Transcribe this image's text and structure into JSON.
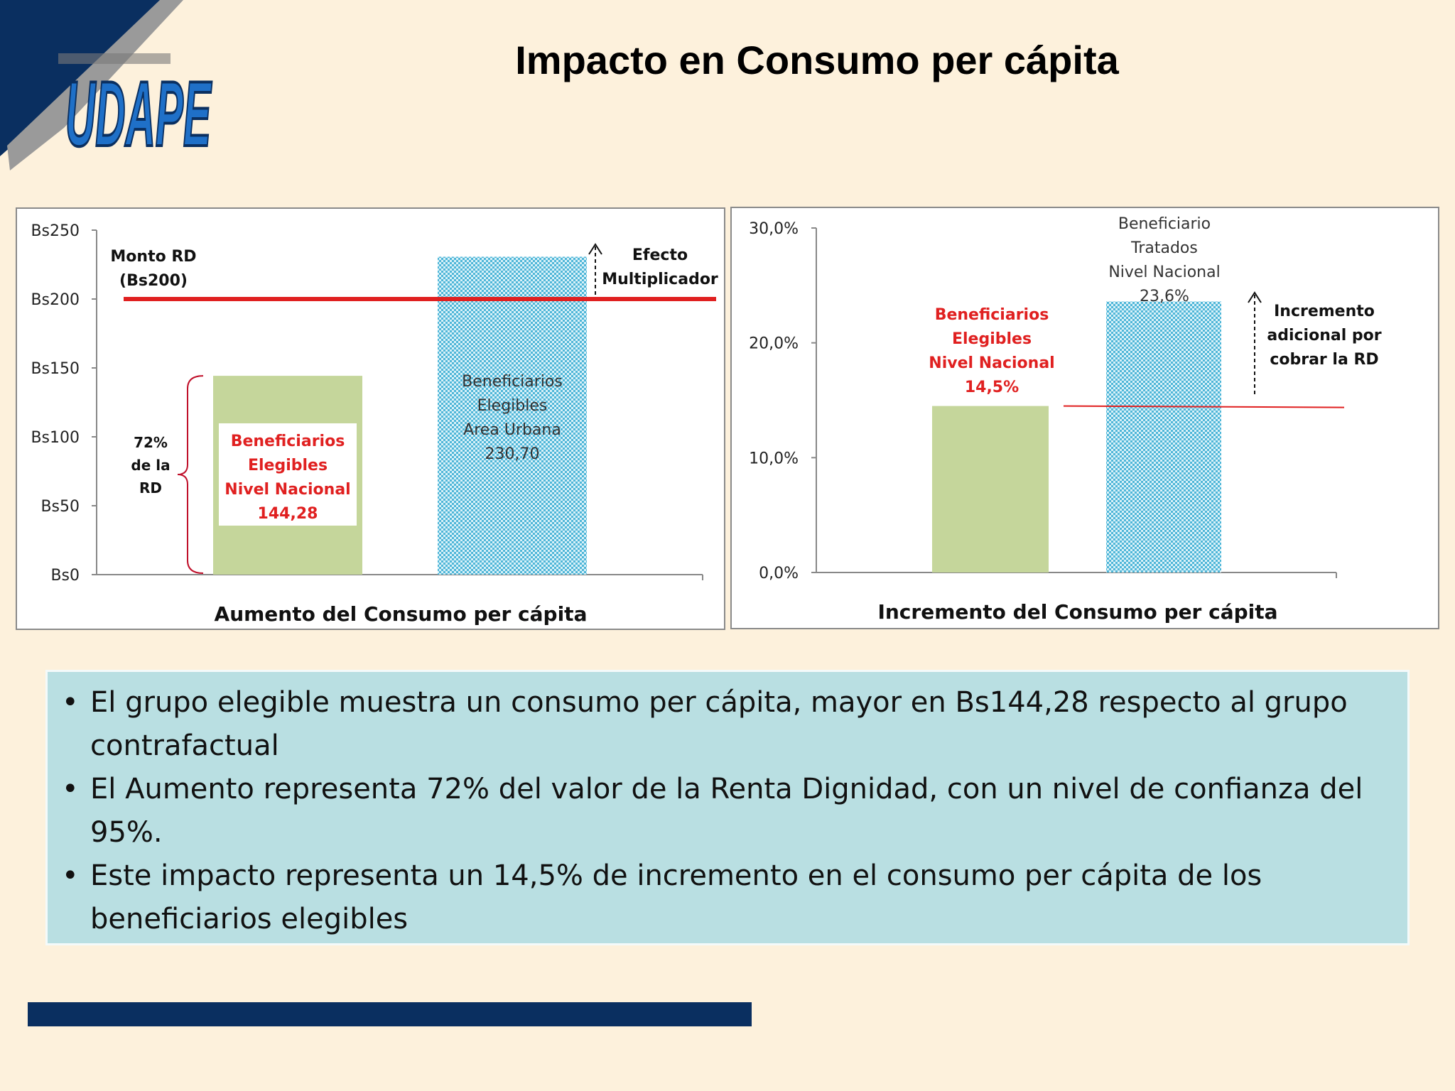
{
  "slide": {
    "title": "Impacto en Consumo per cápita",
    "logo_text": "UDAPE"
  },
  "colors": {
    "background": "#fdf1dc",
    "navy": "#0a2f60",
    "green_bar": "#c5d69b",
    "blue_hatch": "#4fb6d8",
    "red": "#e02020",
    "bullet_box": "#b9dfe2"
  },
  "chart_data": [
    {
      "type": "bar",
      "title": "Aumento del Consumo per cápita",
      "ylim": [
        0,
        250
      ],
      "yticks": [
        "Bs0",
        "Bs50",
        "Bs100",
        "Bs150",
        "Bs200",
        "Bs250"
      ],
      "yvalues": [
        0,
        50,
        100,
        150,
        200,
        250
      ],
      "bars": [
        {
          "value": 144.28,
          "label_lines": [
            "Beneficiarios",
            "Elegibles",
            "Nivel Nacional",
            "144,28"
          ],
          "style": "green"
        },
        {
          "value": 230.7,
          "label_lines": [
            "Beneficiarios",
            "Elegibles",
            "Area Urbana",
            "230,70"
          ],
          "style": "blue-hatch"
        }
      ],
      "reference_line": {
        "value": 200,
        "label_lines": [
          "Monto RD",
          "(Bs200)"
        ]
      },
      "annotations": {
        "multiplier_lines": [
          "Efecto",
          "Multiplicador"
        ],
        "share_lines": [
          "72%",
          "de la",
          "RD"
        ]
      }
    },
    {
      "type": "bar",
      "title": "Incremento del Consumo per cápita",
      "ylim": [
        0,
        30
      ],
      "yticks": [
        "0,0%",
        "10,0%",
        "20,0%",
        "30,0%"
      ],
      "yvalues": [
        0,
        10,
        20,
        30
      ],
      "bars": [
        {
          "value": 14.5,
          "label_lines": [
            "Beneficiarios",
            "Elegibles",
            "Nivel Nacional",
            "14,5%"
          ],
          "style": "green"
        },
        {
          "value": 23.6,
          "label_lines": [
            "Beneficiario",
            "Tratados",
            "Nivel Nacional",
            "23,6%"
          ],
          "style": "blue-hatch"
        }
      ],
      "reference_line": {
        "value": 14.5
      },
      "annotations": {
        "increment_lines": [
          "Incremento",
          "adicional por",
          "cobrar la RD"
        ]
      }
    }
  ],
  "bullets": [
    "El grupo elegible muestra un consumo per cápita, mayor en Bs144,28 respecto al grupo contrafactual",
    "El Aumento representa 72% del valor de la Renta Dignidad, con un nivel de confianza del 95%.",
    "Este impacto representa un 14,5% de incremento en el consumo per cápita de los beneficiarios elegibles"
  ]
}
